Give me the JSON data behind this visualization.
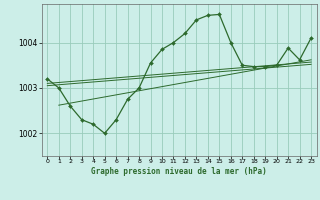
{
  "title": "Graphe pression niveau de la mer (hPa)",
  "bg_color": "#cceee8",
  "grid_color": "#99ccbb",
  "line_color": "#2d6a2d",
  "marker_color": "#2d6a2d",
  "xlim": [
    -0.5,
    23.5
  ],
  "ylim": [
    1001.5,
    1004.85
  ],
  "yticks": [
    1002,
    1003,
    1004
  ],
  "xticks": [
    0,
    1,
    2,
    3,
    4,
    5,
    6,
    7,
    8,
    9,
    10,
    11,
    12,
    13,
    14,
    15,
    16,
    17,
    18,
    19,
    20,
    21,
    22,
    23
  ],
  "main_series": [
    [
      0,
      1003.2
    ],
    [
      1,
      1003.0
    ],
    [
      2,
      1002.6
    ],
    [
      3,
      1002.3
    ],
    [
      4,
      1002.2
    ],
    [
      5,
      1002.0
    ],
    [
      6,
      1002.3
    ],
    [
      7,
      1002.75
    ],
    [
      8,
      1003.0
    ],
    [
      9,
      1003.55
    ],
    [
      10,
      1003.85
    ],
    [
      11,
      1004.0
    ],
    [
      12,
      1004.2
    ],
    [
      13,
      1004.5
    ],
    [
      14,
      1004.6
    ],
    [
      15,
      1004.62
    ],
    [
      16,
      1004.0
    ],
    [
      17,
      1003.5
    ],
    [
      18,
      1003.47
    ],
    [
      19,
      1003.47
    ],
    [
      20,
      1003.5
    ],
    [
      21,
      1003.88
    ],
    [
      22,
      1003.62
    ],
    [
      23,
      1004.1
    ]
  ],
  "trend_lines": [
    [
      [
        0,
        1003.05
      ],
      [
        23,
        1003.52
      ]
    ],
    [
      [
        0,
        1003.1
      ],
      [
        23,
        1003.57
      ]
    ],
    [
      [
        1,
        1002.62
      ],
      [
        23,
        1003.62
      ]
    ]
  ]
}
